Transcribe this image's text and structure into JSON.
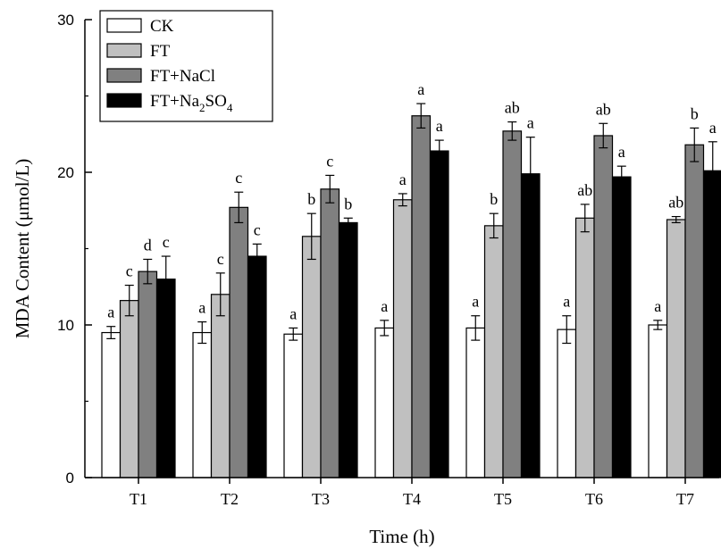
{
  "chart_data": {
    "type": "bar",
    "xlabel": "Time (h)",
    "ylabel": "MDA Content (μmol/L)",
    "ylim": [
      0,
      30
    ],
    "yticks": [
      0,
      10,
      20,
      30
    ],
    "categories": [
      "T1",
      "T2",
      "T3",
      "T4",
      "T5",
      "T6",
      "T7"
    ],
    "legend_position": "top-left",
    "series": [
      {
        "name": "CK",
        "color": "#ffffff",
        "values": [
          9.5,
          9.5,
          9.4,
          9.8,
          9.8,
          9.7,
          10.0
        ],
        "errors": [
          0.4,
          0.7,
          0.4,
          0.5,
          0.8,
          0.9,
          0.3
        ],
        "letters": [
          "a",
          "a",
          "a",
          "a",
          "a",
          "a",
          "a"
        ]
      },
      {
        "name": "FT",
        "color": "#c0c0c0",
        "values": [
          11.6,
          12.0,
          15.8,
          18.2,
          16.5,
          17.0,
          16.9
        ],
        "errors": [
          1.0,
          1.4,
          1.5,
          0.4,
          0.8,
          0.9,
          0.2
        ],
        "letters": [
          "c",
          "c",
          "b",
          "a",
          "b",
          "ab",
          "ab"
        ]
      },
      {
        "name": "FT+NaCl",
        "color": "#808080",
        "values": [
          13.5,
          17.7,
          18.9,
          23.7,
          22.7,
          22.4,
          21.8
        ],
        "errors": [
          0.8,
          1.0,
          0.9,
          0.8,
          0.6,
          0.8,
          1.1
        ],
        "letters": [
          "d",
          "c",
          "c",
          "a",
          "ab",
          "ab",
          "b"
        ]
      },
      {
        "name": "FT+Na2SO4",
        "name_parts": [
          "FT+Na",
          "2",
          "SO",
          "4"
        ],
        "color": "#000000",
        "values": [
          13.0,
          14.5,
          16.7,
          21.4,
          19.9,
          19.7,
          20.1
        ],
        "errors": [
          1.5,
          0.8,
          0.3,
          0.7,
          2.4,
          0.7,
          1.9
        ],
        "letters": [
          "c",
          "c",
          "b",
          "a",
          "a",
          "a",
          "a"
        ]
      }
    ]
  }
}
